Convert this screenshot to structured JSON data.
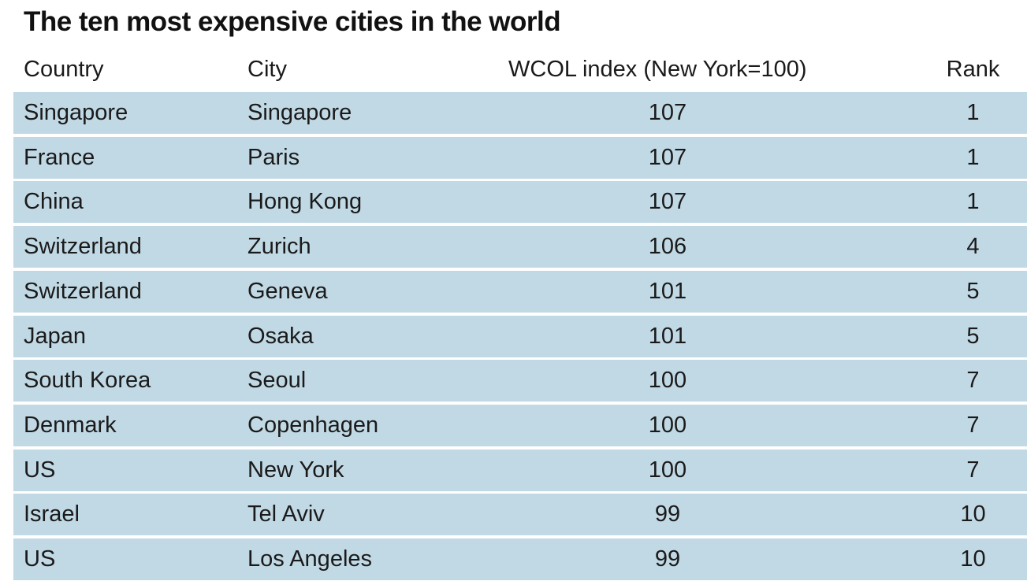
{
  "title": "The ten most expensive cities in the world",
  "colors": {
    "row_background": "#c1d9e5",
    "text": "#1a1a1a"
  },
  "chart_data": {
    "type": "table",
    "title": "The ten most expensive cities in the world",
    "columns": [
      "Country",
      "City",
      "WCOL index (New York=100)",
      "Rank"
    ],
    "rows": [
      [
        "Singapore",
        "Singapore",
        "107",
        "1"
      ],
      [
        "France",
        "Paris",
        "107",
        "1"
      ],
      [
        "China",
        "Hong Kong",
        "107",
        "1"
      ],
      [
        "Switzerland",
        "Zurich",
        "106",
        "4"
      ],
      [
        "Switzerland",
        "Geneva",
        "101",
        "5"
      ],
      [
        "Japan",
        "Osaka",
        "101",
        "5"
      ],
      [
        "South Korea",
        "Seoul",
        "100",
        "7"
      ],
      [
        "Denmark",
        "Copenhagen",
        "100",
        "7"
      ],
      [
        "US",
        "New York",
        "100",
        "7"
      ],
      [
        "Israel",
        "Tel Aviv",
        "99",
        "10"
      ],
      [
        "US",
        "Los Angeles",
        "99",
        "10"
      ]
    ]
  }
}
